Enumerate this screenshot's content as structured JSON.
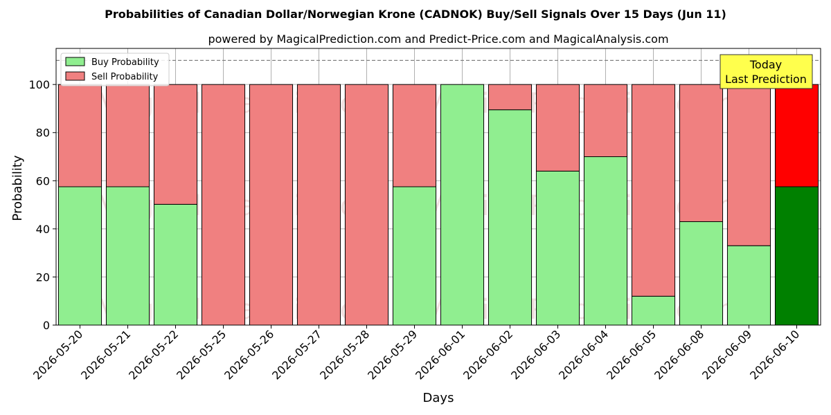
{
  "chart_data": {
    "type": "bar",
    "stacked": true,
    "title": "Probabilities of Canadian Dollar/Norwegian Krone (CADNOK) Buy/Sell Signals Over 15 Days (Jun 11)",
    "subtitle": "powered by MagicalPrediction.com and Predict-Price.com and MagicalAnalysis.com",
    "xlabel": "Days",
    "ylabel": "Probability",
    "ylim": [
      0,
      115
    ],
    "yticks": [
      0,
      20,
      40,
      60,
      80,
      100
    ],
    "grid": true,
    "legend_position": "top-left",
    "reference_line": 110,
    "categories": [
      "2026-05-20",
      "2026-05-21",
      "2026-05-22",
      "2026-05-25",
      "2026-05-26",
      "2026-05-27",
      "2026-05-28",
      "2026-05-29",
      "2026-06-01",
      "2026-06-02",
      "2026-06-03",
      "2026-06-04",
      "2026-06-05",
      "2026-06-08",
      "2026-06-09",
      "2026-06-10"
    ],
    "series": [
      {
        "name": "Buy Probability",
        "color": "#90ee90",
        "highlight_color": "#008000",
        "values": [
          57.5,
          57.5,
          50.2,
          0,
          0,
          0,
          0,
          57.5,
          100,
          89.5,
          64,
          70,
          12,
          43,
          33,
          57.5
        ]
      },
      {
        "name": "Sell Probability",
        "color": "#f08080",
        "highlight_color": "#ff0000",
        "values": [
          42.5,
          42.5,
          49.8,
          100,
          100,
          100,
          100,
          42.5,
          0,
          10.5,
          36,
          30,
          88,
          57,
          67,
          42.5
        ]
      }
    ],
    "highlight_index": 15,
    "annotation": {
      "lines": [
        "Today",
        "Last Prediction"
      ],
      "bg": "#ffff4d"
    },
    "watermarks": [
      "MagicalAnalysis.com",
      "MagicalPrediction.com"
    ]
  }
}
